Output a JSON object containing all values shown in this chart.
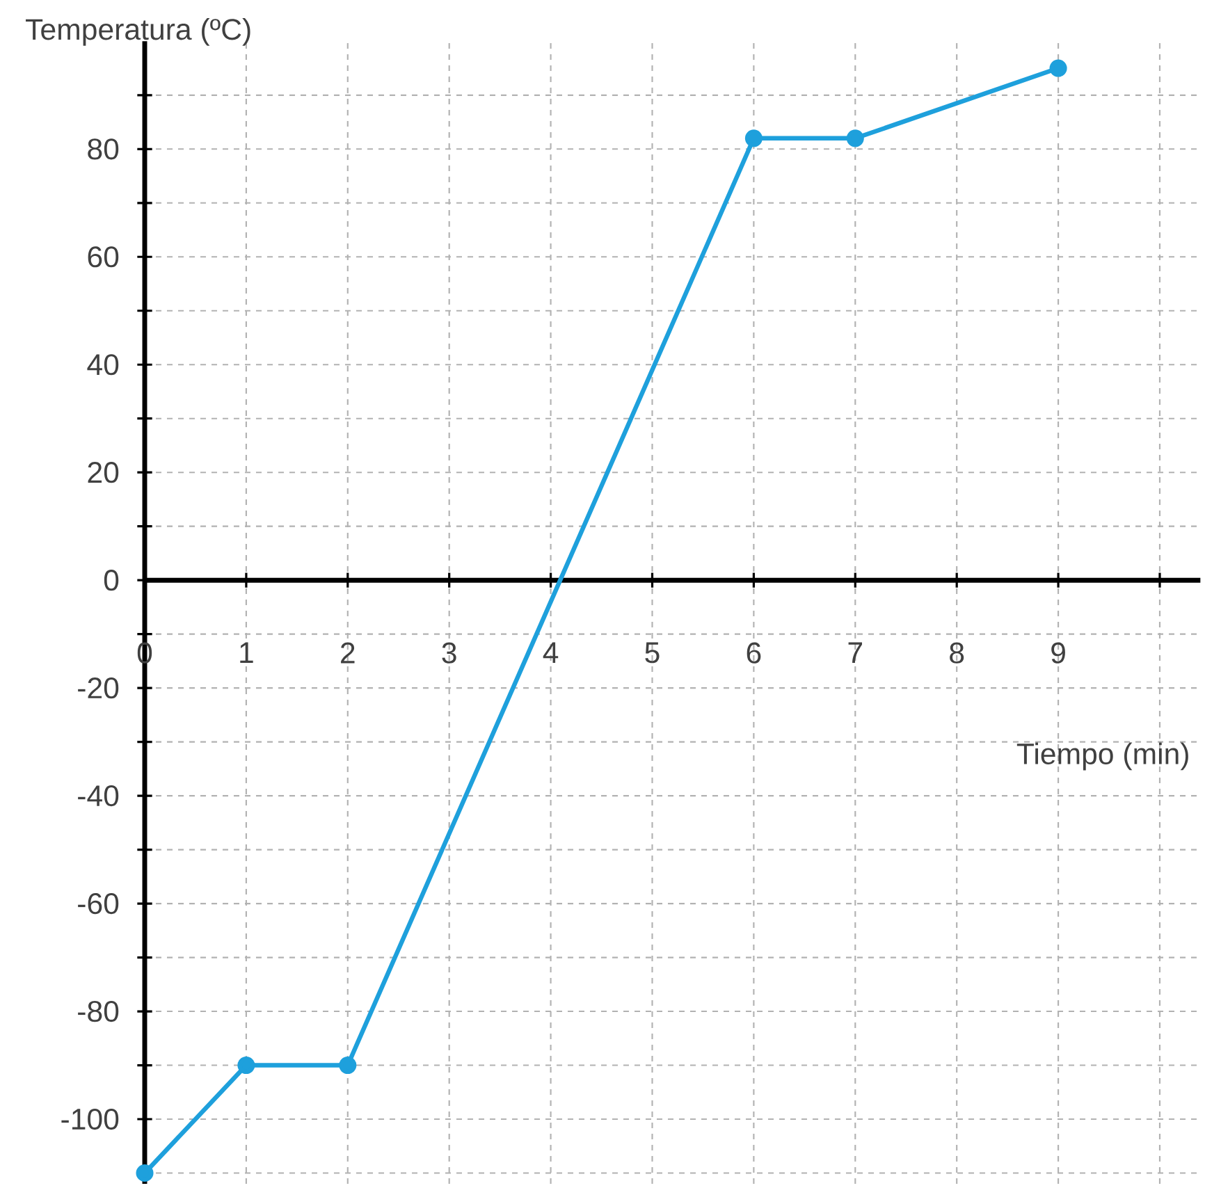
{
  "chart_data": {
    "type": "line",
    "xlabel": "Tiempo (min)",
    "ylabel": "Temperatura (ºC)",
    "x": [
      0,
      1,
      2,
      6,
      7,
      9
    ],
    "series": [
      {
        "color": "#1ea0dc",
        "values": [
          -110,
          -90,
          -90,
          82,
          82,
          95
        ]
      }
    ],
    "xlim": [
      0,
      10.4
    ],
    "ylim": [
      -112,
      100
    ],
    "xticks": [
      0,
      1,
      2,
      3,
      4,
      5,
      6,
      7,
      8,
      9,
      {
        "value": 10,
        "label": null
      }
    ],
    "yticks": [
      {
        "value": -110,
        "label": null
      },
      -100,
      {
        "value": -90,
        "label": null
      },
      -80,
      {
        "value": -70,
        "label": null
      },
      -60,
      {
        "value": -50,
        "label": null
      },
      -40,
      {
        "value": -30,
        "label": null
      },
      -20,
      {
        "value": -10,
        "label": null
      },
      0,
      {
        "value": 10,
        "label": null
      },
      20,
      {
        "value": 30,
        "label": null
      },
      40,
      {
        "value": 50,
        "label": null
      },
      60,
      {
        "value": 70,
        "label": null
      },
      80,
      {
        "value": 90,
        "label": null
      }
    ],
    "grid": true,
    "marker": "circle",
    "line_style": "solid"
  }
}
